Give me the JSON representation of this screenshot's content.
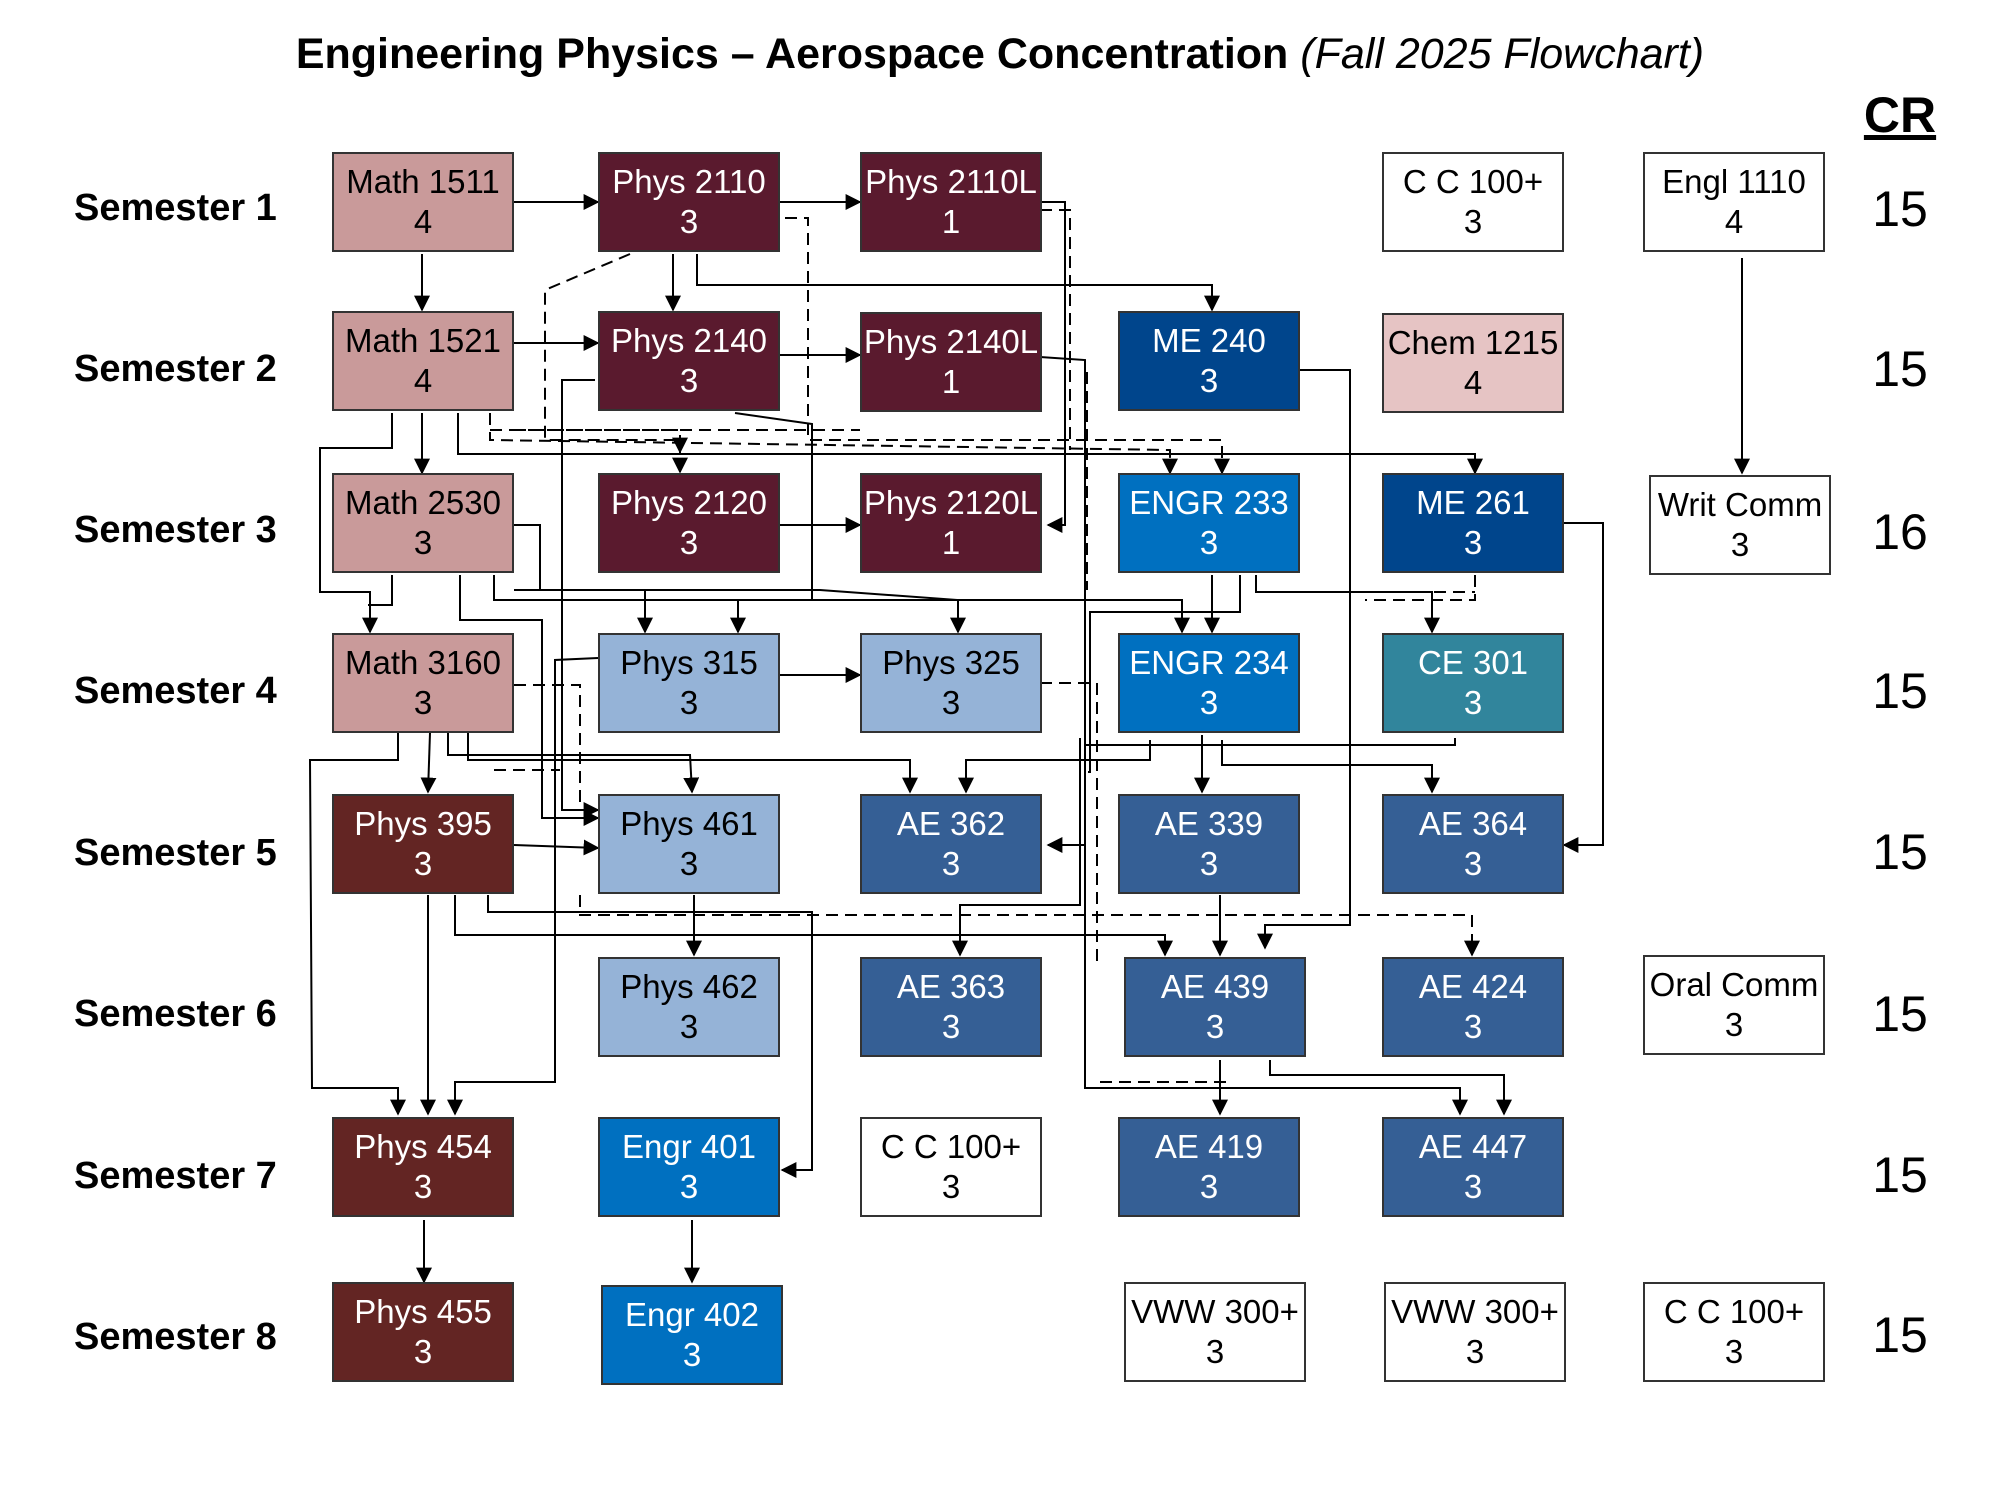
{
  "title": {
    "main": "Engineering Physics – Aerospace Concentration",
    "sub": "(Fall 2025 Flowchart)"
  },
  "cr_header": "CR",
  "semesters": [
    {
      "label": "Semester 1",
      "credits": "15"
    },
    {
      "label": "Semester 2",
      "credits": "15"
    },
    {
      "label": "Semester 3",
      "credits": "16"
    },
    {
      "label": "Semester 4",
      "credits": "15"
    },
    {
      "label": "Semester 5",
      "credits": "15"
    },
    {
      "label": "Semester 6",
      "credits": "15"
    },
    {
      "label": "Semester 7",
      "credits": "15"
    },
    {
      "label": "Semester 8",
      "credits": "15"
    }
  ],
  "colors": {
    "math": "#c99a9a",
    "phys_intro": "#5a1a2e",
    "phys_upper_light": "#95b3d7",
    "phys_upper_dark": "#632523",
    "engr_blue": "#0070c0",
    "me_navy": "#00458c",
    "ae_blue": "#355f95",
    "ce_teal": "#31859c",
    "chem": "#e6c4c4",
    "gen_ed": "#ffffff"
  },
  "courses": [
    {
      "id": "math1511",
      "name": "Math 1511",
      "credits": "4"
    },
    {
      "id": "phys2110",
      "name": "Phys 2110",
      "credits": "3"
    },
    {
      "id": "phys2110l",
      "name": "Phys 2110L",
      "credits": "1"
    },
    {
      "id": "cc1",
      "name": "C C 100+",
      "credits": "3"
    },
    {
      "id": "engl1110",
      "name": "Engl 1110",
      "credits": "4"
    },
    {
      "id": "math1521",
      "name": "Math 1521",
      "credits": "4"
    },
    {
      "id": "phys2140",
      "name": "Phys 2140",
      "credits": "3"
    },
    {
      "id": "phys2140l",
      "name": "Phys 2140L",
      "credits": "1"
    },
    {
      "id": "me240",
      "name": "ME 240",
      "credits": "3"
    },
    {
      "id": "chem1215",
      "name": "Chem 1215",
      "credits": "4"
    },
    {
      "id": "math2530",
      "name": "Math 2530",
      "credits": "3"
    },
    {
      "id": "phys2120",
      "name": "Phys 2120",
      "credits": "3"
    },
    {
      "id": "phys2120l",
      "name": "Phys 2120L",
      "credits": "1"
    },
    {
      "id": "engr233",
      "name": "ENGR 233",
      "credits": "3"
    },
    {
      "id": "me261",
      "name": "ME 261",
      "credits": "3"
    },
    {
      "id": "writcomm",
      "name": "Writ Comm",
      "credits": "3"
    },
    {
      "id": "math3160",
      "name": "Math 3160",
      "credits": "3"
    },
    {
      "id": "phys315",
      "name": "Phys 315",
      "credits": "3"
    },
    {
      "id": "phys325",
      "name": "Phys 325",
      "credits": "3"
    },
    {
      "id": "engr234",
      "name": "ENGR 234",
      "credits": "3"
    },
    {
      "id": "ce301",
      "name": "CE 301",
      "credits": "3"
    },
    {
      "id": "phys395",
      "name": "Phys 395",
      "credits": "3"
    },
    {
      "id": "phys461",
      "name": "Phys 461",
      "credits": "3"
    },
    {
      "id": "ae362",
      "name": "AE 362",
      "credits": "3"
    },
    {
      "id": "ae339",
      "name": "AE 339",
      "credits": "3"
    },
    {
      "id": "ae364",
      "name": "AE 364",
      "credits": "3"
    },
    {
      "id": "phys462",
      "name": "Phys 462",
      "credits": "3"
    },
    {
      "id": "ae363",
      "name": "AE 363",
      "credits": "3"
    },
    {
      "id": "ae439",
      "name": "AE 439",
      "credits": "3"
    },
    {
      "id": "ae424",
      "name": "AE 424",
      "credits": "3"
    },
    {
      "id": "oralcomm",
      "name": "Oral Comm",
      "credits": "3"
    },
    {
      "id": "phys454",
      "name": "Phys 454",
      "credits": "3"
    },
    {
      "id": "engr401",
      "name": "Engr 401",
      "credits": "3"
    },
    {
      "id": "cc2",
      "name": "C C 100+",
      "credits": "3"
    },
    {
      "id": "ae419",
      "name": "AE 419",
      "credits": "3"
    },
    {
      "id": "ae447",
      "name": "AE 447",
      "credits": "3"
    },
    {
      "id": "phys455",
      "name": "Phys 455",
      "credits": "3"
    },
    {
      "id": "engr402",
      "name": "Engr 402",
      "credits": "3"
    },
    {
      "id": "vww1",
      "name": "VWW 300+",
      "credits": "3"
    },
    {
      "id": "vww2",
      "name": "VWW 300+",
      "credits": "3"
    },
    {
      "id": "cc3",
      "name": "C C 100+",
      "credits": "3"
    }
  ]
}
